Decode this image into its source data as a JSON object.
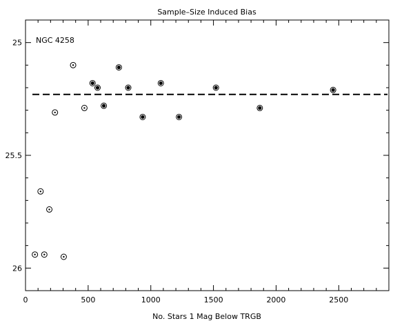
{
  "chart_data": {
    "type": "scatter",
    "title": "Sample–Size Induced Bias",
    "xlabel": "No. Stars 1 Mag Below TRGB",
    "ylabel": "",
    "annotation": "NGC 4258",
    "xlim": [
      0,
      2900
    ],
    "ylim": [
      26.1,
      24.9
    ],
    "y_inverted": true,
    "xticks": [
      0,
      500,
      1000,
      1500,
      2000,
      2500
    ],
    "yticks": [
      25,
      25.5,
      26
    ],
    "reference_line": {
      "y": 25.23,
      "style": "dashed"
    },
    "grid": false,
    "series": [
      {
        "marker": "open-circle-dot",
        "x": [
          75,
          120,
          150,
          190,
          235,
          305,
          380,
          470
        ],
        "y": [
          25.94,
          25.66,
          25.94,
          25.74,
          25.31,
          25.95,
          25.1,
          25.29
        ]
      },
      {
        "marker": "filled-circle-ring",
        "x": [
          535,
          575,
          625,
          745,
          820,
          935,
          1080,
          1225,
          1520,
          1870,
          2455
        ],
        "y": [
          25.18,
          25.2,
          25.28,
          25.11,
          25.2,
          25.33,
          25.18,
          25.33,
          25.2,
          25.29,
          25.21
        ]
      }
    ]
  }
}
